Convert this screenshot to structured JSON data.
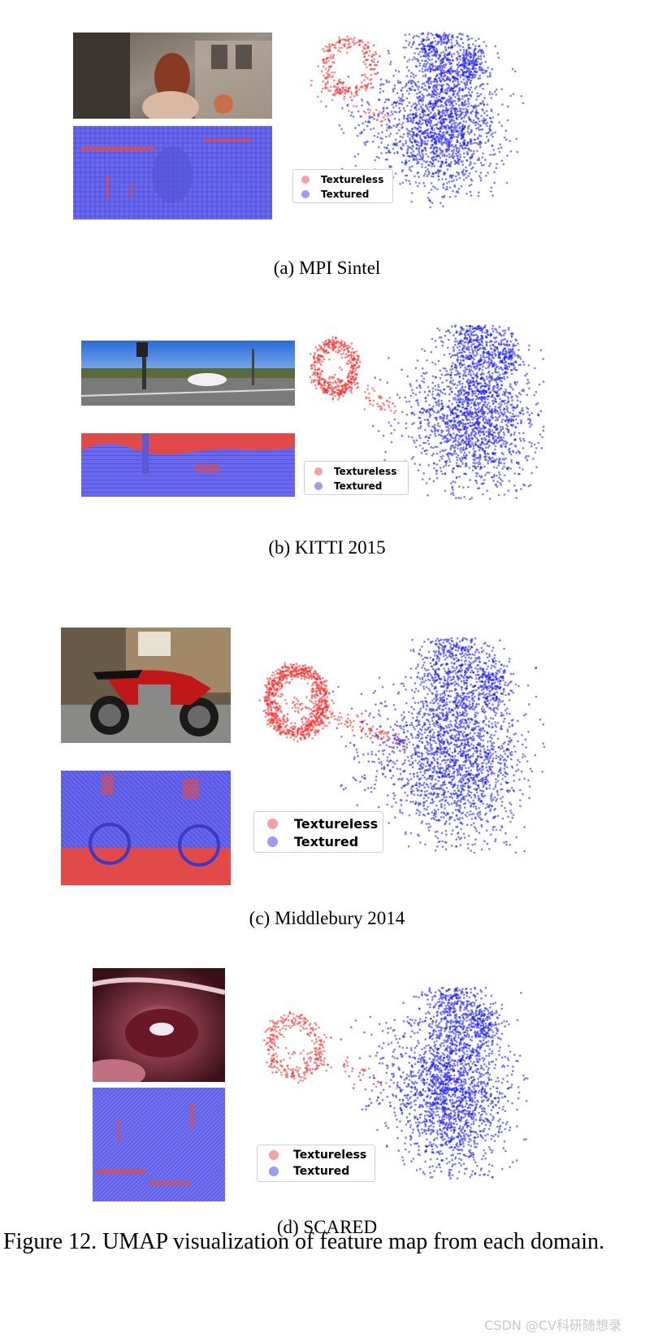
{
  "panels": [
    {
      "caption": "(a) MPI Sintel",
      "legend": {
        "textureless": "Textureless",
        "textured": "Textured"
      },
      "chart_data": {
        "type": "scatter",
        "method": "UMAP",
        "series": [
          {
            "name": "Textureless",
            "color": "#ff0000",
            "points": 300,
            "cluster_center": [
              -9.5,
              1.3
            ]
          },
          {
            "name": "Textured",
            "color": "#0000ff",
            "points": 2500,
            "cluster_center": [
              6,
              0
            ]
          }
        ],
        "axes": "none",
        "grid": false,
        "legend_position": "bottom-left"
      }
    },
    {
      "caption": "(b) KITTI 2015",
      "legend": {
        "textureless": "Textureless",
        "textured": "Textured"
      },
      "chart_data": {
        "type": "scatter",
        "method": "UMAP",
        "series": [
          {
            "name": "Textureless",
            "color": "#ff0000",
            "points": 500,
            "cluster_center": [
              -9,
              1.2
            ]
          },
          {
            "name": "Textured",
            "color": "#0000ff",
            "points": 2500,
            "cluster_center": [
              5.5,
              0
            ]
          }
        ],
        "axes": "none",
        "grid": false,
        "legend_position": "bottom-left"
      }
    },
    {
      "caption": "(c) Middlebury 2014",
      "legend": {
        "textureless": "Textureless",
        "textured": "Textured"
      },
      "chart_data": {
        "type": "scatter",
        "method": "UMAP",
        "series": [
          {
            "name": "Textureless",
            "color": "#ff0000",
            "points": 1000,
            "cluster_center": [
              -9,
              1.5
            ]
          },
          {
            "name": "Textured",
            "color": "#0000ff",
            "points": 3000,
            "cluster_center": [
              6,
              0
            ]
          }
        ],
        "axes": "none",
        "grid": false,
        "legend_position": "bottom-left"
      }
    },
    {
      "caption": "(d) SCARED",
      "legend": {
        "textureless": "Textureless",
        "textured": "Textured"
      },
      "chart_data": {
        "type": "scatter",
        "method": "UMAP",
        "series": [
          {
            "name": "Textureless",
            "color": "#ff0000",
            "points": 350,
            "cluster_center": [
              -9.5,
              1.3
            ]
          },
          {
            "name": "Textured",
            "color": "#0000ff",
            "points": 2800,
            "cluster_center": [
              6,
              0
            ]
          }
        ],
        "axes": "none",
        "grid": false,
        "legend_position": "bottom-left"
      }
    }
  ],
  "figure_caption": "Figure 12. UMAP visualization of feature map from each domain.",
  "watermark": "CSDN @CV科研随想录",
  "colors": {
    "textureless": "#ff0000",
    "textured": "#0000ff",
    "overlay_blue": "#6a6af0",
    "overlay_red": "#e24a4a"
  }
}
